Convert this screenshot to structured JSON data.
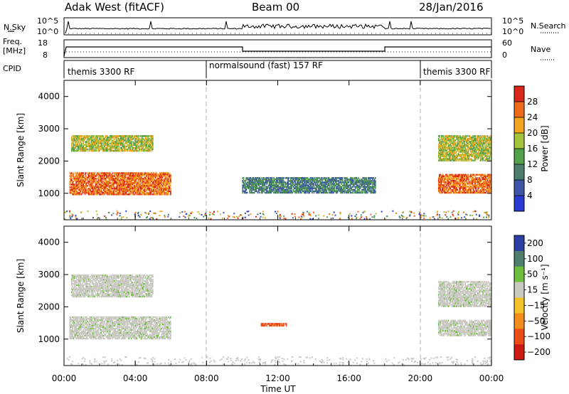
{
  "header": {
    "station": "Adak West (fitACF)",
    "beam": "Beam 00",
    "date": "28/Jan/2016"
  },
  "left_labels": {
    "nsky": "N.Sky",
    "freq_line1": "Freq.",
    "freq_line2": "[MHz]",
    "cpid": "CPID"
  },
  "right_labels": {
    "nsearch": "N.Search",
    "nave": "Nave"
  },
  "cpid_segments": [
    {
      "label": "themis 3300 RF",
      "start_h": 0,
      "end_h": 8
    },
    {
      "label": "normalsound (fast) 157 RF",
      "start_h": 8,
      "end_h": 20
    },
    {
      "label": "themis 3300 RF",
      "start_h": 20,
      "end_h": 24
    }
  ],
  "noise_panel": {
    "left_ticks": [
      "10^5",
      "10^0"
    ],
    "right_ticks": [
      "10^5",
      "10^0"
    ]
  },
  "freq_panel": {
    "left_ticks": [
      "18",
      "8"
    ],
    "right_ticks": [
      "60",
      "0"
    ]
  },
  "time_axis": {
    "label": "Time UT",
    "ticks": [
      "00:00",
      "04:00",
      "08:00",
      "12:00",
      "16:00",
      "20:00",
      "00:00"
    ]
  },
  "power_colorbar": {
    "label": "Power [dB]",
    "ticks": [
      "4",
      "8",
      "12",
      "16",
      "20",
      "24",
      "28"
    ],
    "colors": [
      "#2a3bd1",
      "#3d56a8",
      "#4a7d6c",
      "#53a14c",
      "#a4c23a",
      "#f2a31f",
      "#ee6a18",
      "#d9261a"
    ]
  },
  "velocity_colorbar": {
    "label": "Velocity [m s⁻¹]",
    "ticks": [
      "200",
      "100",
      "50",
      "15",
      "−15",
      "−50",
      "−100",
      "−200"
    ],
    "colors": [
      "#2b3fa3",
      "#4d7f6a",
      "#6dbf3c",
      "#c9c9c1",
      "#f4c32a",
      "#f28c1a",
      "#ea4e16",
      "#cc1a14"
    ]
  },
  "chart_data": [
    {
      "type": "heatmap",
      "title": "",
      "ylabel": "Slant Range [km]",
      "xlabel": "",
      "yticks": [
        "1000",
        "2000",
        "3000",
        "4000"
      ],
      "ylim": [
        180,
        4500
      ],
      "xlim_hours": [
        0,
        24
      ],
      "colorbar": "Power [dB]",
      "regions": [
        {
          "t_start": 0.3,
          "t_end": 6.0,
          "r_start": 950,
          "r_end": 1650,
          "value": 24
        },
        {
          "t_start": 0.4,
          "t_end": 5.0,
          "r_start": 2300,
          "r_end": 2800,
          "value": 16
        },
        {
          "t_start": 21.0,
          "t_end": 24.0,
          "r_start": 1000,
          "r_end": 1600,
          "value": 24
        },
        {
          "t_start": 21.0,
          "t_end": 24.0,
          "r_start": 2000,
          "r_end": 2800,
          "value": 16
        },
        {
          "t_start": 10.0,
          "t_end": 17.5,
          "r_start": 1000,
          "r_end": 1500,
          "value": 8
        }
      ]
    },
    {
      "type": "heatmap",
      "title": "",
      "ylabel": "Slant Range [km]",
      "xlabel": "Time UT",
      "yticks": [
        "1000",
        "2000",
        "3000",
        "4000"
      ],
      "ylim": [
        180,
        4500
      ],
      "xlim_hours": [
        0,
        24
      ],
      "colorbar": "Velocity [m s⁻¹]",
      "regions": [
        {
          "t_start": 0.3,
          "t_end": 6.0,
          "r_start": 1000,
          "r_end": 1700,
          "value": 0
        },
        {
          "t_start": 0.4,
          "t_end": 5.0,
          "r_start": 2300,
          "r_end": 3000,
          "value": 0
        },
        {
          "t_start": 21.0,
          "t_end": 24.0,
          "r_start": 1100,
          "r_end": 1600,
          "value": 0
        },
        {
          "t_start": 21.0,
          "t_end": 24.0,
          "r_start": 2000,
          "r_end": 2800,
          "value": 0
        },
        {
          "t_start": 11.0,
          "t_end": 12.5,
          "r_start": 1400,
          "r_end": 1500,
          "value": -100
        }
      ]
    }
  ]
}
